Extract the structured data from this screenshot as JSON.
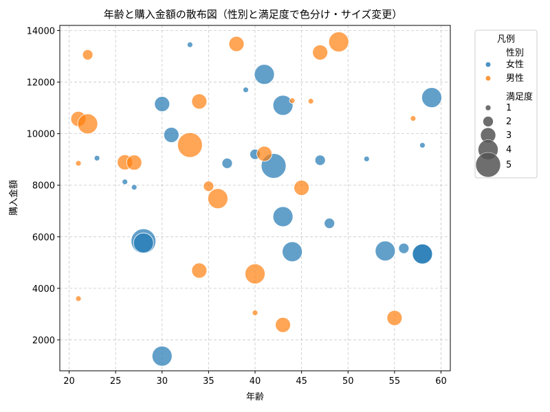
{
  "chart_data": {
    "type": "scatter",
    "title": "年齢と購入金額の散布図（性別と満足度で色分け・サイズ変更）",
    "xlabel": "年齢",
    "ylabel": "購入金額",
    "xlim": [
      19,
      61
    ],
    "ylim": [
      800,
      14200
    ],
    "xticks": [
      20,
      25,
      30,
      35,
      40,
      45,
      50,
      55,
      60
    ],
    "yticks": [
      2000,
      4000,
      6000,
      8000,
      10000,
      12000,
      14000
    ],
    "grid": true,
    "legend": {
      "title": "凡例",
      "placement": "outside-upper-right",
      "hue_title": "性別",
      "size_title": "満足度",
      "sizes": [
        1,
        2,
        3,
        4,
        5
      ]
    },
    "series": [
      {
        "name": "女性",
        "color": "#1f77b4",
        "points": [
          {
            "x": 33,
            "y": 13450,
            "s": 1
          },
          {
            "x": 41,
            "y": 12300,
            "s": 4
          },
          {
            "x": 39,
            "y": 11700,
            "s": 1
          },
          {
            "x": 30,
            "y": 11150,
            "s": 3
          },
          {
            "x": 43,
            "y": 11100,
            "s": 4
          },
          {
            "x": 59,
            "y": 11400,
            "s": 4
          },
          {
            "x": 31,
            "y": 9950,
            "s": 3
          },
          {
            "x": 58,
            "y": 9550,
            "s": 1
          },
          {
            "x": 23,
            "y": 9050,
            "s": 1
          },
          {
            "x": 40,
            "y": 9200,
            "s": 2
          },
          {
            "x": 37,
            "y": 8850,
            "s": 2
          },
          {
            "x": 47,
            "y": 8970,
            "s": 2
          },
          {
            "x": 52,
            "y": 9020,
            "s": 1
          },
          {
            "x": 42,
            "y": 8750,
            "s": 5
          },
          {
            "x": 26,
            "y": 8130,
            "s": 1
          },
          {
            "x": 27,
            "y": 7920,
            "s": 1
          },
          {
            "x": 43,
            "y": 6780,
            "s": 4
          },
          {
            "x": 48,
            "y": 6520,
            "s": 2
          },
          {
            "x": 28,
            "y": 5830,
            "s": 5
          },
          {
            "x": 28,
            "y": 5760,
            "s": 4
          },
          {
            "x": 44,
            "y": 5420,
            "s": 4
          },
          {
            "x": 54,
            "y": 5450,
            "s": 4
          },
          {
            "x": 56,
            "y": 5550,
            "s": 2
          },
          {
            "x": 58,
            "y": 5350,
            "s": 4
          },
          {
            "x": 58,
            "y": 5330,
            "s": 4
          },
          {
            "x": 30,
            "y": 1370,
            "s": 4
          }
        ]
      },
      {
        "name": "男性",
        "color": "#ff7f0e",
        "points": [
          {
            "x": 22,
            "y": 13060,
            "s": 2
          },
          {
            "x": 38,
            "y": 13480,
            "s": 3
          },
          {
            "x": 47,
            "y": 13150,
            "s": 3
          },
          {
            "x": 49,
            "y": 13560,
            "s": 4
          },
          {
            "x": 34,
            "y": 11250,
            "s": 3
          },
          {
            "x": 44,
            "y": 11280,
            "s": 1
          },
          {
            "x": 46,
            "y": 11260,
            "s": 1
          },
          {
            "x": 21,
            "y": 10570,
            "s": 3
          },
          {
            "x": 22,
            "y": 10380,
            "s": 4
          },
          {
            "x": 57,
            "y": 10590,
            "s": 1
          },
          {
            "x": 33,
            "y": 9560,
            "s": 5
          },
          {
            "x": 41,
            "y": 9220,
            "s": 3
          },
          {
            "x": 21,
            "y": 8850,
            "s": 1
          },
          {
            "x": 26,
            "y": 8890,
            "s": 3
          },
          {
            "x": 27,
            "y": 8880,
            "s": 3
          },
          {
            "x": 35,
            "y": 7960,
            "s": 2
          },
          {
            "x": 45,
            "y": 7900,
            "s": 3
          },
          {
            "x": 36,
            "y": 7480,
            "s": 4
          },
          {
            "x": 34,
            "y": 4690,
            "s": 3
          },
          {
            "x": 40,
            "y": 4560,
            "s": 4
          },
          {
            "x": 21,
            "y": 3600,
            "s": 1
          },
          {
            "x": 40,
            "y": 3050,
            "s": 1
          },
          {
            "x": 43,
            "y": 2580,
            "s": 3
          },
          {
            "x": 55,
            "y": 2850,
            "s": 3
          }
        ]
      }
    ]
  }
}
